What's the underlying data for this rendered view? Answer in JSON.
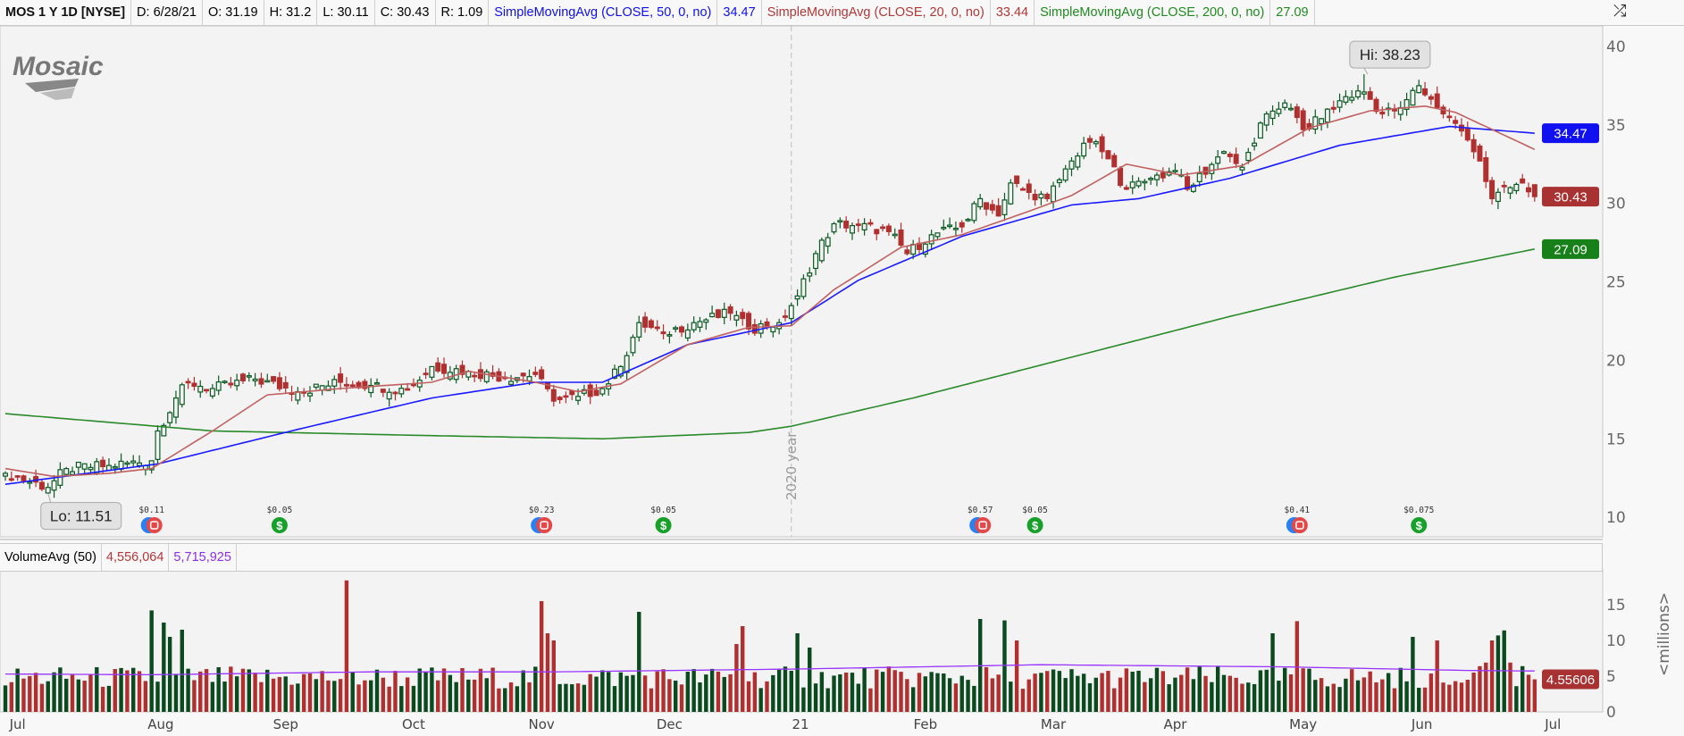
{
  "header": {
    "ticker": "MOS 1 Y 1D [NYSE]",
    "date": "D: 6/28/21",
    "open": "O: 31.19",
    "high": "H: 31.2",
    "low": "L: 30.11",
    "close": "C: 30.43",
    "range": "R: 1.09",
    "sma50_label": "SimpleMovingAvg (CLOSE, 50, 0, no)",
    "sma50_value": "34.47",
    "sma20_label": "SimpleMovingAvg (CLOSE, 20, 0, no)",
    "sma20_value": "33.44",
    "sma200_label": "SimpleMovingAvg (CLOSE, 200, 0, no)",
    "sma200_value": "27.09",
    "swap_icon": "swap-arrows-icon"
  },
  "logo": "Mosaic",
  "volume_header": {
    "label": "VolumeAvg (50)",
    "volume": "4,556,064",
    "avg": "5,715,925"
  },
  "colors": {
    "up": "#0b5a23",
    "down": "#b03030",
    "sma50": "#1a1aff",
    "sma20": "#c06060",
    "sma200": "#2a8a2a",
    "volavg": "#9933ff"
  },
  "chart_data": {
    "type": "candlestick",
    "title": "MOS 1 Y 1D [NYSE]",
    "days": 252,
    "ylim": [
      10,
      40
    ],
    "y_ticks": [
      10,
      15,
      20,
      25,
      30,
      35,
      40
    ],
    "close_keypoints": [
      [
        0,
        12.8
      ],
      [
        7,
        11.9
      ],
      [
        10,
        13.1
      ],
      [
        17,
        13.3
      ],
      [
        24,
        13.6
      ],
      [
        25,
        15.5
      ],
      [
        28,
        17.6
      ],
      [
        30,
        18.6
      ],
      [
        34,
        18.2
      ],
      [
        41,
        18.8
      ],
      [
        48,
        18.0
      ],
      [
        55,
        18.6
      ],
      [
        60,
        18.4
      ],
      [
        66,
        18.1
      ],
      [
        70,
        19.6
      ],
      [
        76,
        19.3
      ],
      [
        82,
        18.9
      ],
      [
        87,
        19.1
      ],
      [
        90,
        17.4
      ],
      [
        94,
        17.7
      ],
      [
        98,
        18.2
      ],
      [
        101,
        19.6
      ],
      [
        104,
        22.4
      ],
      [
        108,
        21.7
      ],
      [
        113,
        22.4
      ],
      [
        119,
        23.0
      ],
      [
        122,
        22.0
      ],
      [
        127,
        22.4
      ],
      [
        130,
        24.1
      ],
      [
        133,
        26.8
      ],
      [
        136,
        28.7
      ],
      [
        140,
        28.6
      ],
      [
        145,
        28.2
      ],
      [
        148,
        26.8
      ],
      [
        152,
        28.0
      ],
      [
        157,
        28.5
      ],
      [
        160,
        30.3
      ],
      [
        163,
        29.2
      ],
      [
        165,
        31.3
      ],
      [
        168,
        30.7
      ],
      [
        171,
        30.3
      ],
      [
        175,
        32.7
      ],
      [
        178,
        33.9
      ],
      [
        180,
        33.3
      ],
      [
        184,
        30.9
      ],
      [
        188,
        31.6
      ],
      [
        192,
        32.1
      ],
      [
        194,
        30.9
      ],
      [
        200,
        33.3
      ],
      [
        203,
        32.3
      ],
      [
        207,
        35.7
      ],
      [
        210,
        36.4
      ],
      [
        213,
        34.7
      ],
      [
        216,
        35.4
      ],
      [
        220,
        36.8
      ],
      [
        223,
        37.1
      ],
      [
        226,
        35.7
      ],
      [
        229,
        36.1
      ],
      [
        232,
        37.5
      ],
      [
        235,
        36.1
      ],
      [
        238,
        35.1
      ],
      [
        242,
        32.7
      ],
      [
        244,
        30.3
      ],
      [
        247,
        31.0
      ],
      [
        249,
        31.3
      ],
      [
        251,
        30.43
      ]
    ],
    "last_candle": {
      "open": 31.19,
      "high": 31.2,
      "low": 30.11,
      "close": 30.43
    },
    "sma50": [
      [
        0,
        12.1
      ],
      [
        25,
        13.4
      ],
      [
        48,
        15.6
      ],
      [
        70,
        17.6
      ],
      [
        87,
        18.6
      ],
      [
        98,
        18.6
      ],
      [
        112,
        21
      ],
      [
        129,
        22.4
      ],
      [
        140,
        25.1
      ],
      [
        157,
        27.9
      ],
      [
        175,
        29.9
      ],
      [
        186,
        30.3
      ],
      [
        201,
        31.6
      ],
      [
        219,
        33.7
      ],
      [
        237,
        34.9
      ],
      [
        251,
        34.47
      ]
    ],
    "sma20": [
      [
        0,
        13.1
      ],
      [
        8,
        12.6
      ],
      [
        17,
        12.8
      ],
      [
        24,
        13.1
      ],
      [
        34,
        15.5
      ],
      [
        43,
        17.8
      ],
      [
        55,
        18.2
      ],
      [
        70,
        18.6
      ],
      [
        76,
        19.3
      ],
      [
        87,
        18.6
      ],
      [
        94,
        18.0
      ],
      [
        101,
        18.5
      ],
      [
        112,
        21.0
      ],
      [
        122,
        22.1
      ],
      [
        129,
        22.2
      ],
      [
        136,
        24.5
      ],
      [
        147,
        27.2
      ],
      [
        157,
        28.0
      ],
      [
        168,
        29.5
      ],
      [
        175,
        30.5
      ],
      [
        184,
        32.5
      ],
      [
        193,
        31.8
      ],
      [
        203,
        32.4
      ],
      [
        214,
        34.8
      ],
      [
        224,
        35.9
      ],
      [
        233,
        36.2
      ],
      [
        238,
        35.8
      ],
      [
        251,
        33.44
      ]
    ],
    "sma200": [
      [
        0,
        16.6
      ],
      [
        34,
        15.5
      ],
      [
        70,
        15.2
      ],
      [
        98,
        15.0
      ],
      [
        122,
        15.4
      ],
      [
        129,
        15.8
      ],
      [
        149,
        17.6
      ],
      [
        175,
        20.2
      ],
      [
        201,
        22.8
      ],
      [
        228,
        25.3
      ],
      [
        251,
        27.09
      ]
    ],
    "value_labels": [
      {
        "text": "34.47",
        "value": 34.47,
        "color": "#1010f0"
      },
      {
        "text": "30.43",
        "value": 30.43,
        "color": "#a83232"
      },
      {
        "text": "27.09",
        "value": 27.09,
        "color": "#188018"
      }
    ],
    "hi": {
      "text": "Hi: 38.23",
      "index": 223,
      "value": 38.23
    },
    "lo": {
      "text": "Lo: 11.51",
      "index": 7,
      "value": 11.51
    },
    "year_marker": {
      "text": "2020 year",
      "index": 129
    },
    "dividends": [
      {
        "index": 24,
        "text": "$0.11",
        "type": "earnings+dividend"
      },
      {
        "index": 45,
        "text": "$0.05",
        "type": "dividend"
      },
      {
        "index": 88,
        "text": "$0.23",
        "type": "earnings+dividend"
      },
      {
        "index": 108,
        "text": "$0.05",
        "type": "dividend"
      },
      {
        "index": 160,
        "text": "$0.57",
        "type": "earnings+dividend"
      },
      {
        "index": 169,
        "text": "$0.05",
        "type": "dividend"
      },
      {
        "index": 212,
        "text": "$0.41",
        "type": "earnings+dividend"
      },
      {
        "index": 232,
        "text": "$0.075",
        "type": "dividend"
      }
    ],
    "x_ticks": [
      {
        "label": "Jul",
        "index": 2
      },
      {
        "label": "Aug",
        "index": 25.5
      },
      {
        "label": "Sep",
        "index": 46
      },
      {
        "label": "Oct",
        "index": 67
      },
      {
        "label": "Nov",
        "index": 88
      },
      {
        "label": "Dec",
        "index": 109
      },
      {
        "label": "21",
        "index": 130.5
      },
      {
        "label": "Feb",
        "index": 151
      },
      {
        "label": "Mar",
        "index": 172
      },
      {
        "label": "Apr",
        "index": 192
      },
      {
        "label": "May",
        "index": 213
      },
      {
        "label": "Jun",
        "index": 232.5
      },
      {
        "label": "Jul",
        "index": 254
      }
    ],
    "volume": {
      "unit": "millions",
      "axis_label": "<millions>",
      "y_ticks": [
        0,
        5,
        10,
        15
      ],
      "ylim": [
        0,
        19
      ],
      "current_label": "4.55606",
      "current": 4.55606,
      "spikes": [
        [
          24,
          14.2
        ],
        [
          26,
          12.5
        ],
        [
          27,
          10.5
        ],
        [
          29,
          11.5
        ],
        [
          56,
          18.4
        ],
        [
          88,
          15.5
        ],
        [
          89,
          11
        ],
        [
          90,
          10
        ],
        [
          104,
          14
        ],
        [
          120,
          9.5
        ],
        [
          121,
          12
        ],
        [
          130,
          11
        ],
        [
          132,
          9
        ],
        [
          160,
          13
        ],
        [
          164,
          12.8
        ],
        [
          166,
          10
        ],
        [
          208,
          11
        ],
        [
          212,
          12.7
        ],
        [
          231,
          10.5
        ]
      ],
      "tail": [
        10,
        4.1,
        3.8,
        4.3,
        4.1,
        4.5,
        5.5,
        6.4,
        6.9,
        10,
        10.7,
        11.4,
        6.9,
        3.6,
        6.4,
        5.2,
        4.556
      ],
      "avg_keypoints": [
        [
          0,
          5.3
        ],
        [
          24,
          5.2
        ],
        [
          60,
          5.6
        ],
        [
          90,
          5.6
        ],
        [
          130,
          6.0
        ],
        [
          170,
          6.6
        ],
        [
          210,
          6.3
        ],
        [
          240,
          5.8
        ],
        [
          251,
          5.72
        ]
      ]
    }
  }
}
